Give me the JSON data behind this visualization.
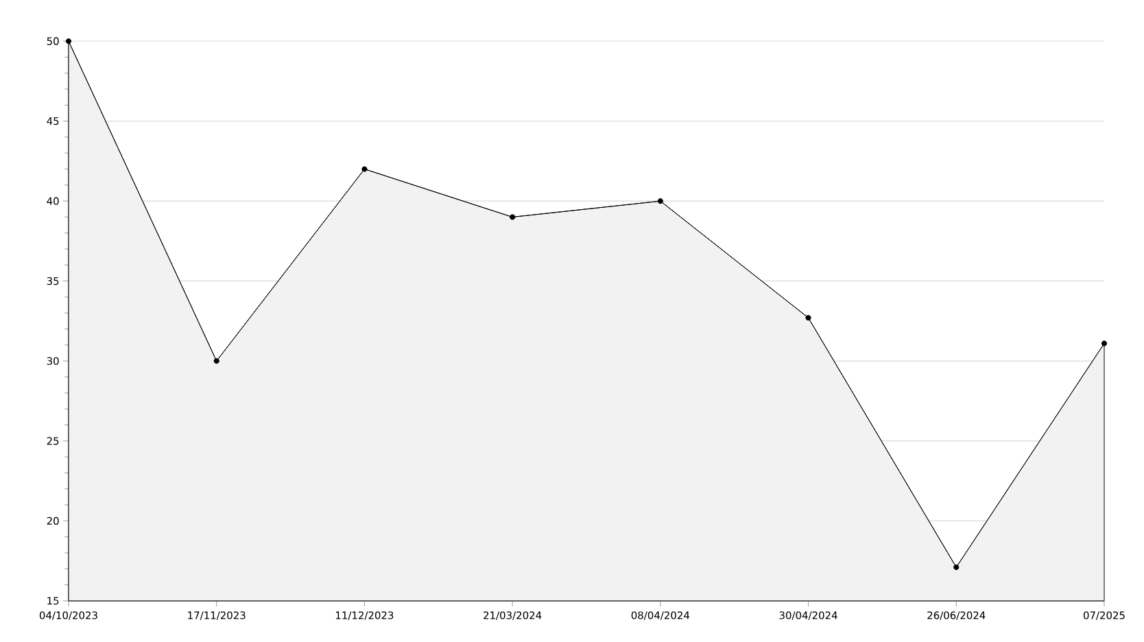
{
  "chart_data": {
    "type": "area",
    "categories": [
      "04/10/2023",
      "17/11/2023",
      "11/12/2023",
      "21/03/2024",
      "08/04/2024",
      "30/04/2024",
      "26/06/2024",
      "07/2025"
    ],
    "values": [
      50,
      30,
      42,
      39,
      40,
      32.7,
      17.1,
      31.1
    ],
    "color": "#f2f2f2",
    "ylim": [
      15,
      50
    ],
    "yticks": [
      15,
      20,
      25,
      30,
      35,
      40,
      45,
      50
    ],
    "grid": "y",
    "marker": "circle",
    "line_style": "solid"
  }
}
